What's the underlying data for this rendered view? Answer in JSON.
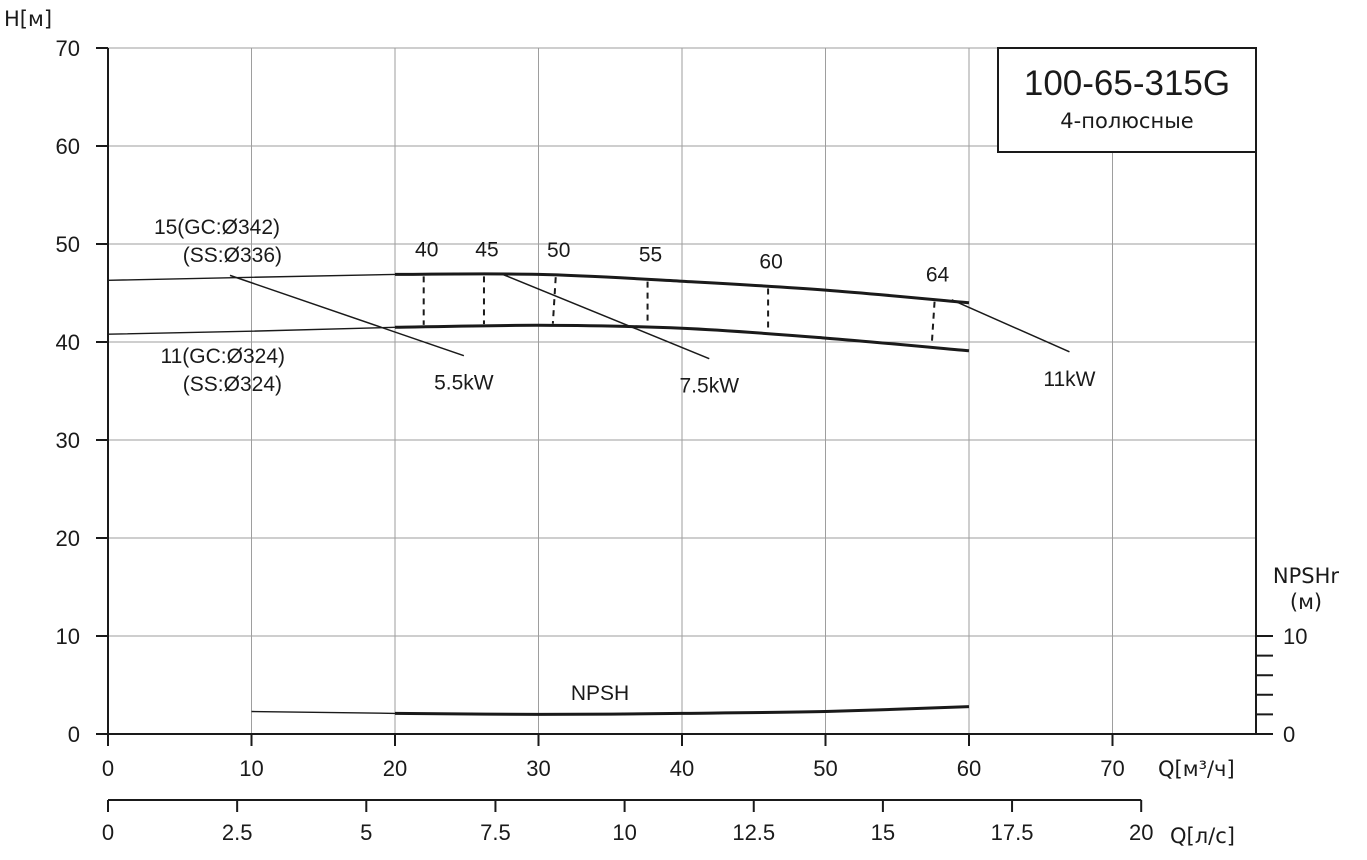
{
  "chart_data": {
    "type": "line",
    "title": "100-65-315G",
    "subtitle": "4-полюсные",
    "ylabel": "H[м]",
    "xlabel": "Q[м³/ч]",
    "xlabel2": "Q[л/с]",
    "ylabel_npsh": [
      "NPSHr",
      "(м)"
    ],
    "xlim": [
      0,
      80
    ],
    "ylim": [
      0,
      70
    ],
    "x_ticks": [
      0,
      10,
      20,
      30,
      40,
      50,
      60,
      70
    ],
    "y_ticks": [
      0,
      10,
      20,
      30,
      40,
      50,
      60,
      70
    ],
    "x2_ticks": [
      "0",
      "2.5",
      "5",
      "7.5",
      "10",
      "12.5",
      "15",
      "17.5",
      "20"
    ],
    "x2_tick_values": [
      0,
      2.5,
      5,
      7.5,
      10,
      12.5,
      15,
      17.5,
      20
    ],
    "npsh_ticks": [
      "0",
      "10"
    ],
    "npsh_tick_values": [
      0,
      2,
      4,
      6,
      8,
      10
    ],
    "series": [
      {
        "name": "15(GC:Ø342)",
        "label_lines": [
          "15(GC:Ø342)",
          "(SS:Ø336)"
        ],
        "x_thin": [
          0,
          10,
          20
        ],
        "y_thin": [
          46.3,
          46.6,
          46.9
        ],
        "x": [
          20,
          30,
          40,
          50,
          60
        ],
        "y": [
          46.9,
          46.9,
          46.2,
          45.3,
          44.0
        ]
      },
      {
        "name": "11(GC:Ø324)",
        "label_lines": [
          "11(GC:Ø324)",
          "(SS:Ø324)"
        ],
        "x_thin": [
          0,
          10,
          20
        ],
        "y_thin": [
          40.8,
          41.1,
          41.5
        ],
        "x": [
          20,
          30,
          40,
          50,
          60
        ],
        "y": [
          41.5,
          41.7,
          41.4,
          40.4,
          39.1
        ]
      },
      {
        "name": "NPSH",
        "label": "NPSH",
        "x_thin": [
          10,
          20
        ],
        "y_thin": [
          2.3,
          2.1
        ],
        "x": [
          20,
          30,
          40,
          50,
          60
        ],
        "y": [
          2.1,
          2.0,
          2.1,
          2.3,
          2.8
        ]
      }
    ],
    "efficiency": [
      {
        "label": "40",
        "x_top": 22.0,
        "x_bot": 22.0
      },
      {
        "label": "45",
        "x_top": 26.2,
        "x_bot": 26.2
      },
      {
        "label": "50",
        "x_top": 31.2,
        "x_bot": 31.0
      },
      {
        "label": "55",
        "x_top": 37.6,
        "x_bot": 37.6
      },
      {
        "label": "60",
        "x_top": 46.0,
        "x_bot": 46.0
      },
      {
        "label": "64",
        "x_top": 57.6,
        "x_bot": 57.4
      }
    ],
    "power": [
      {
        "label": "5.5kW",
        "from": [
          8.5,
          46.8
        ],
        "to": [
          24.8,
          38.6
        ]
      },
      {
        "label": "7.5kW",
        "from": [
          27.5,
          46.9
        ],
        "to": [
          41.9,
          38.3
        ]
      },
      {
        "label": "11kW",
        "from": [
          58.8,
          44.3
        ],
        "to": [
          67.0,
          39.0
        ]
      }
    ]
  }
}
